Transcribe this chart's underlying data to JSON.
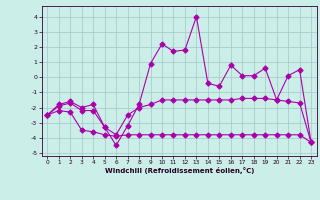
{
  "background_color": "#cceee8",
  "grid_color": "#aacccc",
  "line_color": "#aa00aa",
  "xlabel": "Windchill (Refroidissement éolien,°C)",
  "xlim": [
    -0.5,
    23.5
  ],
  "ylim": [
    -5.2,
    4.7
  ],
  "yticks": [
    -5,
    -4,
    -3,
    -2,
    -1,
    0,
    1,
    2,
    3,
    4
  ],
  "xticks": [
    0,
    1,
    2,
    3,
    4,
    5,
    6,
    7,
    8,
    9,
    10,
    11,
    12,
    13,
    14,
    15,
    16,
    17,
    18,
    19,
    20,
    21,
    22,
    23
  ],
  "line1_x": [
    0,
    1,
    2,
    3,
    4,
    5,
    6,
    7,
    8,
    9,
    10,
    11,
    12,
    13,
    14,
    15,
    16,
    17,
    18,
    19,
    20,
    21,
    22,
    23
  ],
  "line1_y": [
    -2.5,
    -2.2,
    -2.3,
    -3.5,
    -3.6,
    -3.8,
    -3.9,
    -3.8,
    -3.8,
    -3.8,
    -3.8,
    -3.8,
    -3.8,
    -3.8,
    -3.8,
    -3.8,
    -3.8,
    -3.8,
    -3.8,
    -3.8,
    -3.8,
    -3.8,
    -3.8,
    -4.3
  ],
  "line2_x": [
    0,
    1,
    2,
    3,
    4,
    5,
    6,
    7,
    8,
    9,
    10,
    11,
    12,
    13,
    14,
    15,
    16,
    17,
    18,
    19,
    20,
    21,
    22,
    23
  ],
  "line2_y": [
    -2.5,
    -1.9,
    -1.7,
    -2.2,
    -2.2,
    -3.3,
    -3.8,
    -2.5,
    -2.0,
    -1.8,
    -1.5,
    -1.5,
    -1.5,
    -1.5,
    -1.5,
    -1.5,
    -1.5,
    -1.4,
    -1.4,
    -1.4,
    -1.5,
    -1.6,
    -1.7,
    -4.3
  ],
  "line3_x": [
    0,
    1,
    2,
    3,
    4,
    5,
    6,
    7,
    8,
    9,
    10,
    11,
    12,
    13,
    14,
    15,
    16,
    17,
    18,
    19,
    20,
    21,
    22,
    23
  ],
  "line3_y": [
    -2.5,
    -1.8,
    -1.6,
    -2.0,
    -1.8,
    -3.3,
    -4.5,
    -3.2,
    -1.8,
    0.9,
    2.2,
    1.7,
    1.8,
    4.0,
    -0.4,
    -0.6,
    0.8,
    0.1,
    0.1,
    0.6,
    -1.5,
    0.1,
    0.5,
    -4.3
  ],
  "marker": "D",
  "marker_size": 2.5,
  "linewidth": 0.8
}
